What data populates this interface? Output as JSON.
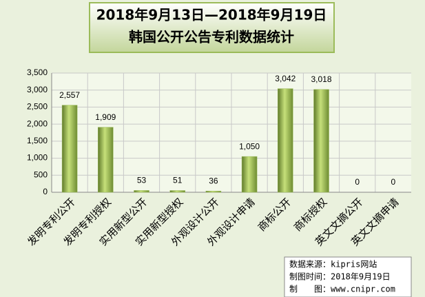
{
  "chart_data": {
    "type": "bar",
    "title": "2018年9月13日—2018年9月19日",
    "subtitle": "韩国公开公告专利数据统计",
    "categories": [
      "发明专利公开",
      "发明专利授权",
      "实用新型公开",
      "实用新型授权",
      "外观设计公开",
      "外观设计申请",
      "商标公开",
      "商标授权",
      "英文文摘公开",
      "英文文摘申请"
    ],
    "values": [
      2557,
      1909,
      53,
      51,
      36,
      1050,
      3042,
      3018,
      0,
      0
    ],
    "value_labels": [
      "2,557",
      "1,909",
      "53",
      "51",
      "36",
      "1,050",
      "3,042",
      "3,018",
      "0",
      "0"
    ],
    "color": "#9bbb59",
    "ylim": [
      0,
      3500
    ],
    "yticks": [
      0,
      500,
      {
        "value": 1000,
        "label": "1,000"
      },
      {
        "value": 1500,
        "label": "1,500"
      },
      {
        "value": 2000,
        "label": "2,000"
      },
      {
        "value": 2500,
        "label": "2,500"
      },
      {
        "value": 3000,
        "label": "3,000"
      },
      {
        "value": 3500,
        "label": "3,500"
      }
    ],
    "grid": true,
    "notes": [
      "数据来源：kipris网站",
      "制图时间：2018年9月19日",
      "制　　图：www.cnipr.com"
    ]
  }
}
